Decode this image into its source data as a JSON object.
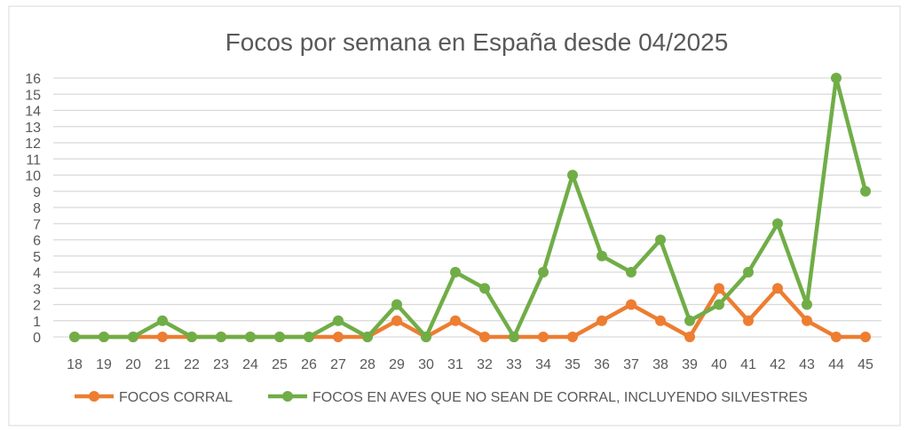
{
  "chart_data": {
    "type": "line",
    "title": "Focos por semana en España desde 04/2025",
    "xlabel": "",
    "ylabel": "",
    "x": [
      "18",
      "19",
      "20",
      "21",
      "22",
      "23",
      "24",
      "25",
      "26",
      "27",
      "28",
      "29",
      "30",
      "31",
      "32",
      "33",
      "34",
      "35",
      "36",
      "37",
      "38",
      "39",
      "40",
      "41",
      "42",
      "43",
      "44",
      "45"
    ],
    "ylim": [
      0,
      16
    ],
    "yticks": [
      "0",
      "1",
      "2",
      "3",
      "4",
      "5",
      "6",
      "7",
      "8",
      "9",
      "10",
      "11",
      "12",
      "13",
      "14",
      "15",
      "16"
    ],
    "grid": true,
    "legend_position": "bottom",
    "series": [
      {
        "name": "FOCOS CORRAL",
        "color": "#ED7D31",
        "values": [
          0,
          0,
          0,
          0,
          0,
          0,
          0,
          0,
          0,
          0,
          0,
          1,
          0,
          1,
          0,
          0,
          0,
          0,
          1,
          2,
          1,
          0,
          3,
          1,
          3,
          1,
          0,
          0
        ]
      },
      {
        "name": "FOCOS EN AVES QUE NO SEAN DE CORRAL, INCLUYENDO SILVESTRES",
        "color": "#70AD47",
        "values": [
          0,
          0,
          0,
          1,
          0,
          0,
          0,
          0,
          0,
          1,
          0,
          2,
          0,
          4,
          3,
          0,
          4,
          10,
          5,
          4,
          6,
          1,
          2,
          4,
          7,
          2,
          16,
          9
        ]
      }
    ]
  }
}
